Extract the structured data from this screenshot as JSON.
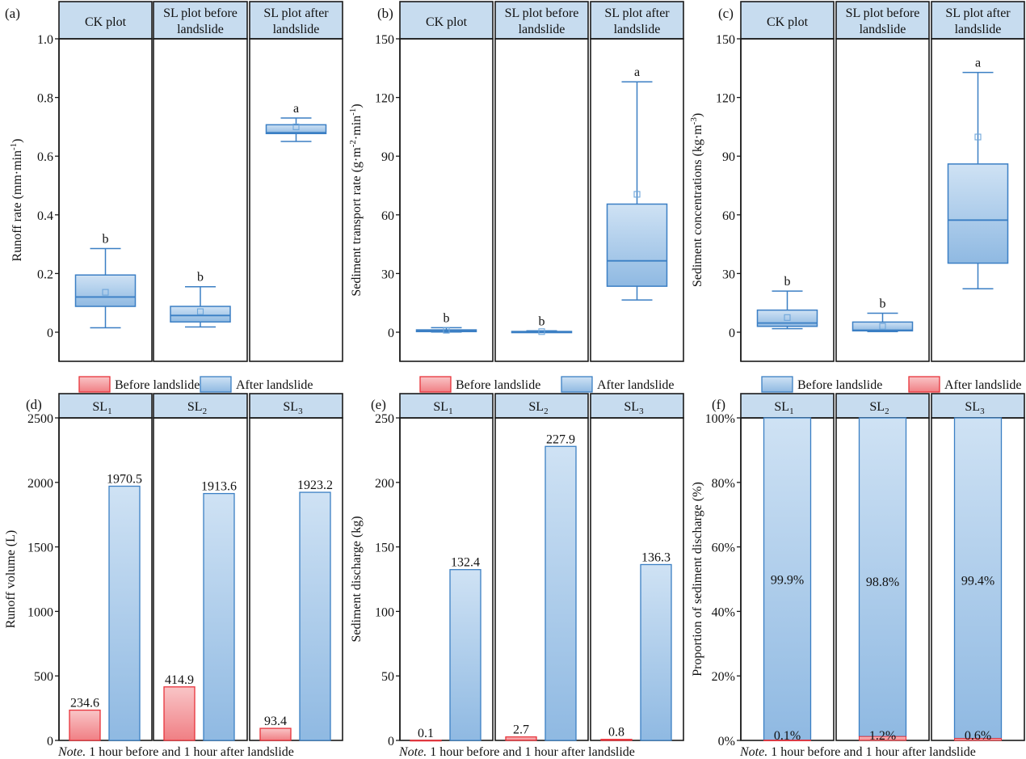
{
  "figure": {
    "note_prefix": "Note.",
    "note_text": " 1 hour before and 1 hour after landslide"
  },
  "colors": {
    "header_fill": "#c7dcef",
    "box_stroke": "#3b7fc4",
    "box_fill_top": "#cfe2f4",
    "box_fill_bottom": "#8fb9e2",
    "red_stroke": "#e8323a",
    "red_fill_top": "#f9c5c7",
    "red_fill_bottom": "#f07f84"
  },
  "chart_data": [
    {
      "id": "a",
      "panel_label": "(a)",
      "type": "box",
      "ylabel": "Runoff rate (mm·min⁻¹)",
      "ylabel_base": "Runoff rate (mm·min",
      "ylabel_sup": "-1",
      "ylabel_tail": ")",
      "ylim": [
        -0.1,
        1.0
      ],
      "yticks": [
        0,
        0.2,
        0.4,
        0.6,
        0.8,
        1.0
      ],
      "ytick_labels": [
        "0",
        "0.2",
        "0.4",
        "0.6",
        "0.8",
        "1.0"
      ],
      "facets": [
        {
          "label": "CK plot",
          "lines": [
            "CK plot"
          ],
          "whisker_low": 0.015,
          "q1": 0.088,
          "median": 0.12,
          "q3": 0.195,
          "whisker_high": 0.285,
          "mean": 0.136,
          "sig": "b"
        },
        {
          "label": "SL plot before landslide",
          "lines": [
            "SL plot before",
            "landslide"
          ],
          "whisker_low": 0.018,
          "q1": 0.035,
          "median": 0.057,
          "q3": 0.088,
          "whisker_high": 0.155,
          "mean": 0.07,
          "sig": "b"
        },
        {
          "label": "SL plot after landslide",
          "lines": [
            "SL plot after",
            "landslide"
          ],
          "whisker_low": 0.65,
          "q1": 0.677,
          "median": 0.68,
          "q3": 0.707,
          "whisker_high": 0.73,
          "mean": 0.7,
          "sig": "a"
        }
      ]
    },
    {
      "id": "b",
      "panel_label": "(b)",
      "type": "box",
      "ylabel": "Sediment transport rate (g·m⁻²·min⁻¹)",
      "ylabel_parts": [
        "Sediment transport rate (g·m",
        "-2",
        "·min",
        "-1",
        ")"
      ],
      "ylim": [
        -15,
        150
      ],
      "yticks": [
        0,
        30,
        60,
        90,
        120,
        150
      ],
      "ytick_labels": [
        "0",
        "30",
        "60",
        "90",
        "120",
        "150"
      ],
      "facets": [
        {
          "label": "CK plot",
          "lines": [
            "CK plot"
          ],
          "whisker_low": 0.1,
          "q1": 0.3,
          "median": 0.8,
          "q3": 1.2,
          "whisker_high": 2.3,
          "mean": 1.0,
          "sig": "b"
        },
        {
          "label": "SL plot before landslide",
          "lines": [
            "SL plot before",
            "landslide"
          ],
          "whisker_low": 0.0,
          "q1": 0.05,
          "median": 0.2,
          "q3": 0.4,
          "whisker_high": 0.7,
          "mean": 0.3,
          "sig": "b"
        },
        {
          "label": "SL plot after landslide",
          "lines": [
            "SL plot after",
            "landslide"
          ],
          "whisker_low": 16.5,
          "q1": 23.5,
          "median": 36.5,
          "q3": 65.5,
          "whisker_high": 128,
          "mean": 70.5,
          "sig": "a"
        }
      ]
    },
    {
      "id": "c",
      "panel_label": "(c)",
      "type": "box",
      "ylabel": "Sediment concentrations (kg·m⁻³)",
      "ylabel_parts": [
        "Sediment concentrations (kg·m",
        "-3",
        ")"
      ],
      "ylim": [
        -15,
        150
      ],
      "yticks": [
        0,
        30,
        60,
        90,
        120,
        150
      ],
      "ytick_labels": [
        "0",
        "30",
        "60",
        "90",
        "120",
        "150"
      ],
      "facets": [
        {
          "label": "CK plot",
          "lines": [
            "CK plot"
          ],
          "whisker_low": 1.8,
          "q1": 3.0,
          "median": 4.7,
          "q3": 11.3,
          "whisker_high": 21,
          "mean": 7.5,
          "sig": "b"
        },
        {
          "label": "SL plot before landslide",
          "lines": [
            "SL plot before",
            "landslide"
          ],
          "whisker_low": 0.3,
          "q1": 0.7,
          "median": 1.0,
          "q3": 5.2,
          "whisker_high": 9.7,
          "mean": 3.0,
          "sig": "b"
        },
        {
          "label": "SL plot after landslide",
          "lines": [
            "SL plot after",
            "landslide"
          ],
          "whisker_low": 22.2,
          "q1": 35.3,
          "median": 57.3,
          "q3": 86,
          "whisker_high": 132.8,
          "mean": 99.8,
          "sig": "a"
        }
      ]
    },
    {
      "id": "d",
      "panel_label": "(d)",
      "type": "bar",
      "ylabel": "Runoff volume (L)",
      "ylim": [
        0,
        2500
      ],
      "yticks": [
        0,
        500,
        1000,
        1500,
        2000,
        2500
      ],
      "ytick_labels": [
        "0",
        "500",
        "1000",
        "1500",
        "2000",
        "2500"
      ],
      "legend": [
        {
          "name": "Before landslide",
          "color": "red"
        },
        {
          "name": "After landslide",
          "color": "blue"
        }
      ],
      "categories": [
        {
          "base": "SL",
          "sub": "1"
        },
        {
          "base": "SL",
          "sub": "2"
        },
        {
          "base": "SL",
          "sub": "3"
        }
      ],
      "series": [
        {
          "name": "Before landslide",
          "values": [
            234.6,
            414.9,
            93.4
          ],
          "labels": [
            "234.6",
            "414.9",
            "93.4"
          ]
        },
        {
          "name": "After landslide",
          "values": [
            1970.5,
            1913.6,
            1923.2
          ],
          "labels": [
            "1970.5",
            "1913.6",
            "1923.2"
          ]
        }
      ]
    },
    {
      "id": "e",
      "panel_label": "(e)",
      "type": "bar",
      "ylabel": "Sediment discharge (kg)",
      "ylim": [
        0,
        250
      ],
      "yticks": [
        0,
        50,
        100,
        150,
        200,
        250
      ],
      "ytick_labels": [
        "0",
        "50",
        "100",
        "150",
        "200",
        "250"
      ],
      "legend": [
        {
          "name": "Before landslide",
          "color": "red"
        },
        {
          "name": "After landslide",
          "color": "blue"
        }
      ],
      "categories": [
        {
          "base": "SL",
          "sub": "1"
        },
        {
          "base": "SL",
          "sub": "2"
        },
        {
          "base": "SL",
          "sub": "3"
        }
      ],
      "series": [
        {
          "name": "Before landslide",
          "values": [
            0.1,
            2.7,
            0.8
          ],
          "labels": [
            "0.1",
            "2.7",
            "0.8"
          ]
        },
        {
          "name": "After landslide",
          "values": [
            132.4,
            227.9,
            136.3
          ],
          "labels": [
            "132.4",
            "227.9",
            "136.3"
          ]
        }
      ]
    },
    {
      "id": "f",
      "panel_label": "(f)",
      "type": "stacked_bar",
      "ylabel": "Proportion of sediment discharge (%)",
      "ylim": [
        0,
        100
      ],
      "yticks": [
        0,
        20,
        40,
        60,
        80,
        100
      ],
      "ytick_labels": [
        "0%",
        "20%",
        "40%",
        "60%",
        "80%",
        "100%"
      ],
      "legend": [
        {
          "name": "Before landslide",
          "color": "blue"
        },
        {
          "name": "After landslide",
          "color": "red"
        }
      ],
      "categories": [
        {
          "base": "SL",
          "sub": "1"
        },
        {
          "base": "SL",
          "sub": "2"
        },
        {
          "base": "SL",
          "sub": "3"
        }
      ],
      "series": [
        {
          "name": "Before landslide",
          "values": [
            0.1,
            1.2,
            0.6
          ],
          "labels": [
            "0.1%",
            "1.2%",
            "0.6%"
          ]
        },
        {
          "name": "After landslide",
          "values": [
            99.9,
            98.8,
            99.4
          ],
          "labels": [
            "99.9%",
            "98.8%",
            "99.4%"
          ]
        }
      ]
    }
  ]
}
